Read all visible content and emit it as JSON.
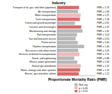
{
  "chart_data": {
    "type": "bar",
    "orientation": "horizontal",
    "title": "Industry",
    "x_label": "Proportionate Mortality Ratio (PMR)",
    "categories": [
      "Transport of oil, gas, and other (pipelines)",
      "Air transportation",
      "Water transportation",
      "Truck transportation",
      "Transit and ground passenger",
      "Couriers and messengers",
      "Warehousing and storage",
      "Rail transportation",
      "Taxi and limousine service",
      "Postal service",
      "Pipeline transportation",
      "Bus service and urban transit",
      "Services incidental to transportation",
      "Scenic and sightseeing",
      "Electric power generation",
      "Natural gas distribution",
      "Water, sewage and other systems",
      "Electric, gas and other utilities"
    ],
    "series": [
      {
        "name": "Non-sig",
        "color": "#b8b8b8",
        "values": [
          null,
          1.08,
          null,
          null,
          0.92,
          null,
          1.31,
          1.02,
          0.95,
          1.06,
          1.4,
          1.09,
          null,
          0.88,
          1.04,
          null,
          null,
          null
        ],
        "value_labels": [
          null,
          "PMR = 1.08",
          null,
          null,
          "PMR = 0.92",
          null,
          "PMR = 1.31",
          "PMR = 1.02",
          "PMR = 0.95",
          "PMR = 1.06",
          "PMR = 1.40",
          "PMR = 1.09",
          null,
          "PMR = 0.88",
          "PMR = 1.04",
          null,
          null,
          null
        ]
      },
      {
        "name": "p < 0.05",
        "color": "#f4b6b6",
        "values": [
          null,
          null,
          1.21,
          null,
          null,
          null,
          null,
          null,
          null,
          null,
          null,
          null,
          1.15,
          null,
          null,
          1.22,
          null,
          null
        ],
        "value_labels": [
          null,
          null,
          "PMR = 1.21",
          null,
          null,
          null,
          null,
          null,
          null,
          null,
          null,
          null,
          "PMR = 1.15",
          null,
          null,
          "PMR = 1.22",
          null,
          null
        ]
      },
      {
        "name": "p < 0.01",
        "color": "#e06666",
        "values": [
          1.13,
          null,
          null,
          1.18,
          null,
          1.25,
          null,
          null,
          null,
          null,
          null,
          null,
          null,
          null,
          null,
          null,
          1.19,
          1.12
        ],
        "value_labels": [
          "PMR = 1.13",
          null,
          null,
          "PMR = 1.18",
          null,
          "PMR = 1.25",
          null,
          null,
          null,
          null,
          null,
          null,
          null,
          null,
          null,
          null,
          "PMR = 1.19",
          "PMR = 1.12"
        ]
      }
    ],
    "xlim": [
      0,
      2
    ],
    "tick_labels": false,
    "data_labels": true,
    "legend": "bottom-right"
  }
}
